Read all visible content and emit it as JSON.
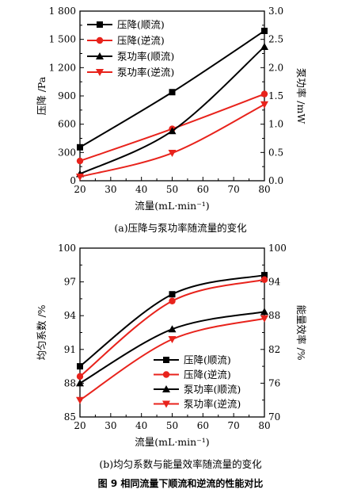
{
  "figure_caption": "图 9 相同流量下顺流和逆流的性能对比",
  "chart_data": [
    {
      "type": "line",
      "subtitle": "(a)压降与泵功率随流量的变化",
      "xlabel": "流量(mL·min⁻¹)",
      "ylabel": "压降 /Pa",
      "y2label": "泵功率 /mW",
      "x": [
        20,
        50,
        80
      ],
      "xlim": [
        20,
        80
      ],
      "xticks": [
        "20",
        "30",
        "40",
        "50",
        "60",
        "70",
        "80"
      ],
      "ylim": [
        0,
        1800
      ],
      "yticks": [
        "0",
        "300",
        "600",
        "900",
        "1 200",
        "1 500",
        "1 800"
      ],
      "y2lim": [
        0,
        3.0
      ],
      "y2ticks": [
        "0.0",
        "0.5",
        "1.0",
        "1.5",
        "2.0",
        "2.5",
        "3.0"
      ],
      "grid": false,
      "legend": "top-left",
      "series": [
        {
          "name": "压降(顺流)",
          "axis": "left",
          "values": [
            355,
            940,
            1590
          ],
          "color": "#000000",
          "marker": "square"
        },
        {
          "name": "压降(逆流)",
          "axis": "left",
          "values": [
            210,
            550,
            920
          ],
          "color": "#e8231c",
          "marker": "circle"
        },
        {
          "name": "泵功率(顺流)",
          "axis": "right",
          "values": [
            0.12,
            0.88,
            2.37
          ],
          "color": "#000000",
          "marker": "triangle-up"
        },
        {
          "name": "泵功率(逆流)",
          "axis": "right",
          "values": [
            0.07,
            0.49,
            1.35
          ],
          "color": "#e8231c",
          "marker": "triangle-down"
        }
      ]
    },
    {
      "type": "line",
      "subtitle": "(b)均匀系数与能量效率随流量的变化",
      "xlabel": "流量(mL·min⁻¹)",
      "ylabel": "均匀系数 /%",
      "y2label": "能量效率 /%",
      "x": [
        20,
        50,
        80
      ],
      "xlim": [
        20,
        80
      ],
      "xticks": [
        "20",
        "30",
        "40",
        "50",
        "60",
        "70",
        "80"
      ],
      "ylim": [
        85,
        100
      ],
      "yticks": [
        "85",
        "88",
        "91",
        "94",
        "97",
        "100"
      ],
      "y2lim": [
        70,
        100
      ],
      "y2ticks": [
        "70",
        "76",
        "82",
        "88",
        "94",
        "100"
      ],
      "grid": false,
      "legend": "bottom-right",
      "series": [
        {
          "name": "压降(顺流)",
          "axis": "left",
          "values": [
            89.5,
            95.9,
            97.6
          ],
          "color": "#000000",
          "marker": "square"
        },
        {
          "name": "压降(逆流)",
          "axis": "left",
          "values": [
            88.6,
            95.3,
            97.2
          ],
          "color": "#e8231c",
          "marker": "circle"
        },
        {
          "name": "泵功率(顺流)",
          "axis": "right",
          "values": [
            76.0,
            85.6,
            88.7
          ],
          "color": "#000000",
          "marker": "triangle-up"
        },
        {
          "name": "泵功率(逆流)",
          "axis": "right",
          "values": [
            73.0,
            83.8,
            87.5
          ],
          "color": "#e8231c",
          "marker": "triangle-down"
        }
      ]
    }
  ]
}
